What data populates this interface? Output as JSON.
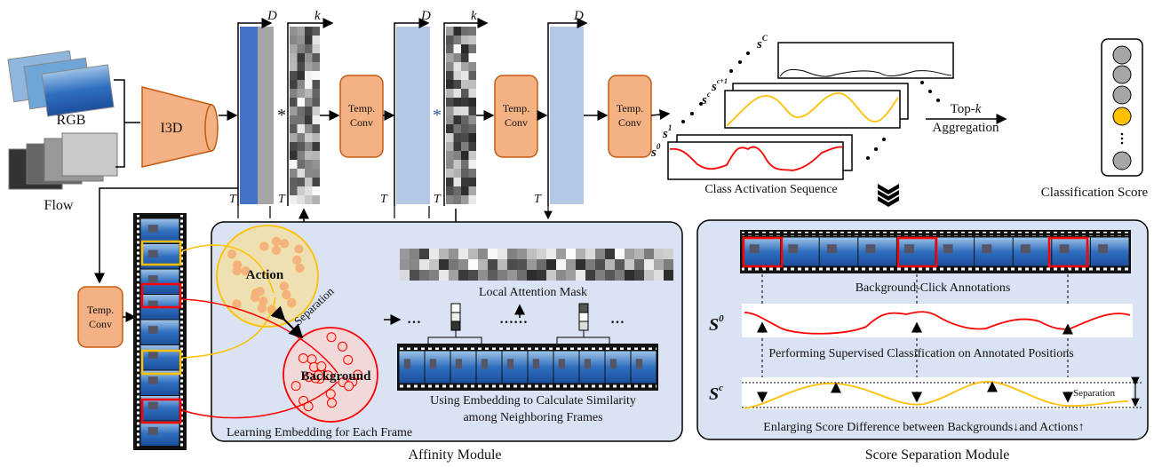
{
  "inputs": {
    "rgb_label": "RGB",
    "flow_label": "Flow",
    "backbone_label": "I3D"
  },
  "dims": {
    "d": "D",
    "k": "K",
    "t": "T",
    "k_lower": "k",
    "conv_op": "*"
  },
  "temp_conv": {
    "line1": "Temp.",
    "line2": "Conv"
  },
  "cas": {
    "label": "Class Activation Sequence",
    "s0": "s",
    "s0_sup": "0",
    "s1": "s",
    "s1_sup": "1",
    "sc": "s",
    "sc_sup": "c",
    "sc1": "s",
    "sc1_sup": "c+1",
    "sC": "s",
    "sC_sup": "C"
  },
  "aggregation": {
    "line1": "Top-",
    "k": "k",
    "line2": "Aggregation"
  },
  "classification": {
    "label": "Classification Score"
  },
  "affinity": {
    "title": "Affinity Module",
    "action": "Action",
    "background": "Background",
    "separation": "Separation",
    "mask_label": "Local  Attention Mask",
    "similarity_line1": "Using Embedding to Calculate Similarity",
    "similarity_line2": "among Neighboring Frames",
    "embedding_label": "Learning Embedding for Each Frame",
    "ellipsis": "…",
    "ellipsis_long": "……"
  },
  "score_sep": {
    "title": "Score Separation Module",
    "annotations": "Background-Click Annotations",
    "s0": "S",
    "s0_sup": "0",
    "supervised": "Performing Supervised Classification on Annotated Positions",
    "sc": "S",
    "sc_sup": "c",
    "separation": "Separation",
    "enlarging": "Enlarging Score Difference between Backgrounds↓and Actions↑"
  },
  "colors": {
    "orange_fill": "#f4b183",
    "orange_stroke": "#c55a11",
    "dark_blue": "#4472c4",
    "light_blue": "#b4c7e7",
    "panel": "#dae3f3",
    "action": "#ffc000",
    "background": "#ff0000"
  }
}
